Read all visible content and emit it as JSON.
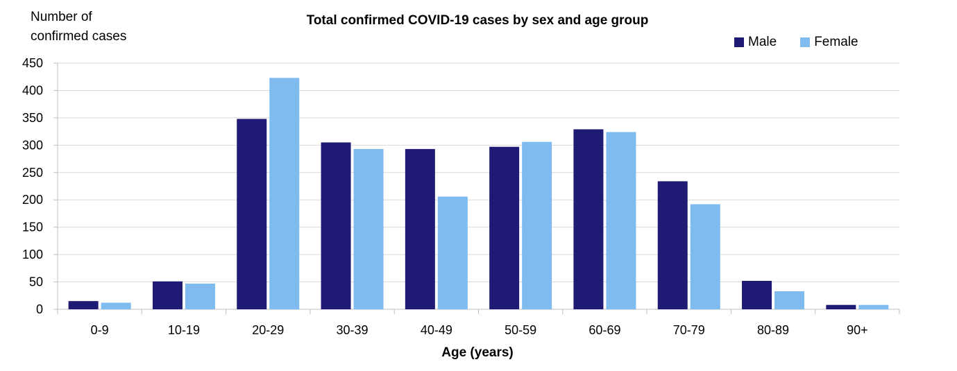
{
  "chart_data": {
    "type": "bar",
    "title": "Total confirmed COVID-19 cases by sex and age group",
    "xlabel": "Age (years)",
    "ylabel_line1": "Number of",
    "ylabel_line2": "confirmed cases",
    "categories": [
      "0-9",
      "10-19",
      "20-29",
      "30-39",
      "40-49",
      "50-59",
      "60-69",
      "70-79",
      "80-89",
      "90+"
    ],
    "series": [
      {
        "name": "Male",
        "color": "#1f1a74",
        "values": [
          15,
          51,
          348,
          305,
          293,
          297,
          329,
          234,
          52,
          8
        ]
      },
      {
        "name": "Female",
        "color": "#7fbbee",
        "values": [
          12,
          47,
          423,
          293,
          206,
          306,
          324,
          192,
          33,
          8
        ]
      }
    ],
    "ylim": [
      0,
      450
    ],
    "yticks": [
      0,
      50,
      100,
      150,
      200,
      250,
      300,
      350,
      400,
      450
    ],
    "grid": true,
    "legend_position": "top-right"
  }
}
